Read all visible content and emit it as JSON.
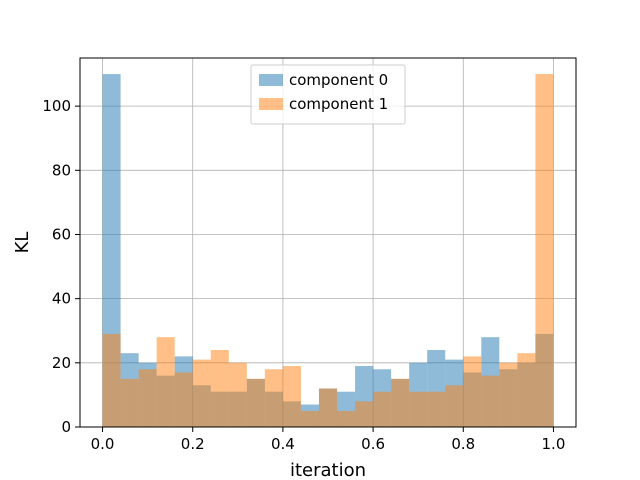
{
  "chart_data": {
    "type": "bar",
    "subtype": "overlapping-histogram",
    "title": "",
    "xlabel": "iteration",
    "ylabel": "KL",
    "xlim": [
      -0.05,
      1.05
    ],
    "ylim": [
      0,
      115
    ],
    "xticks": [
      0.0,
      0.2,
      0.4,
      0.6,
      0.8,
      1.0
    ],
    "xtick_labels": [
      "0.0",
      "0.2",
      "0.4",
      "0.6",
      "0.8",
      "1.0"
    ],
    "yticks": [
      0,
      20,
      40,
      60,
      80,
      100
    ],
    "ytick_labels": [
      "0",
      "20",
      "40",
      "60",
      "80",
      "100"
    ],
    "grid": true,
    "legend_position": "top-center",
    "bin_edges": [
      0.0,
      0.04,
      0.08,
      0.12,
      0.16,
      0.2,
      0.24,
      0.28,
      0.32,
      0.36,
      0.4,
      0.44,
      0.48,
      0.52,
      0.56,
      0.6,
      0.64,
      0.68,
      0.72,
      0.76,
      0.8,
      0.84,
      0.88,
      0.92,
      0.96,
      1.0
    ],
    "series": [
      {
        "name": "component 0",
        "color": "#1f77b4",
        "alpha": 0.5,
        "values": [
          110,
          23,
          20,
          16,
          22,
          13,
          11,
          11,
          15,
          11,
          8,
          7,
          12,
          11,
          19,
          18,
          15,
          20,
          24,
          21,
          17,
          28,
          18,
          20,
          29
        ]
      },
      {
        "name": "component 1",
        "color": "#ff7f0e",
        "alpha": 0.5,
        "values": [
          29,
          15,
          18,
          28,
          17,
          21,
          24,
          20,
          15,
          18,
          19,
          5,
          12,
          5,
          8,
          11,
          15,
          11,
          11,
          13,
          22,
          16,
          20,
          23,
          110
        ]
      }
    ]
  }
}
